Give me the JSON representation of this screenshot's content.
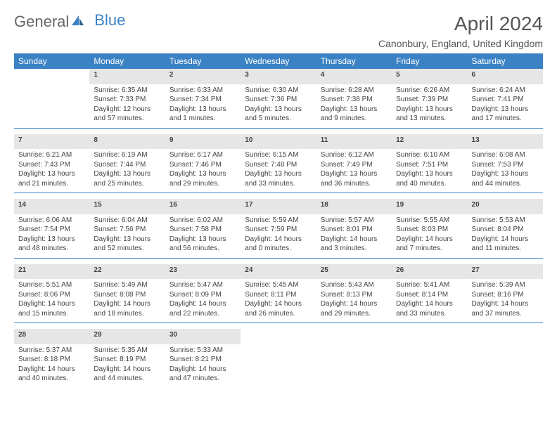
{
  "brand": {
    "general": "General",
    "blue": "Blue"
  },
  "title": "April 2024",
  "location": "Canonbury, England, United Kingdom",
  "colors": {
    "header_bg": "#3b82c4",
    "header_text": "#ffffff",
    "daynum_bg": "#e6e6e6",
    "text": "#444444",
    "rule": "#3b82c4"
  },
  "typography": {
    "title_fontsize": 28,
    "location_fontsize": 14,
    "header_fontsize": 12,
    "daynum_fontsize": 12,
    "cell_fontsize": 10
  },
  "layout": {
    "cols": 7,
    "rows": 5
  },
  "weekdays": [
    "Sunday",
    "Monday",
    "Tuesday",
    "Wednesday",
    "Thursday",
    "Friday",
    "Saturday"
  ],
  "weeks": [
    [
      null,
      {
        "n": "1",
        "sunrise": "Sunrise: 6:35 AM",
        "sunset": "Sunset: 7:33 PM",
        "daylight": "Daylight: 12 hours and 57 minutes."
      },
      {
        "n": "2",
        "sunrise": "Sunrise: 6:33 AM",
        "sunset": "Sunset: 7:34 PM",
        "daylight": "Daylight: 13 hours and 1 minutes."
      },
      {
        "n": "3",
        "sunrise": "Sunrise: 6:30 AM",
        "sunset": "Sunset: 7:36 PM",
        "daylight": "Daylight: 13 hours and 5 minutes."
      },
      {
        "n": "4",
        "sunrise": "Sunrise: 6:28 AM",
        "sunset": "Sunset: 7:38 PM",
        "daylight": "Daylight: 13 hours and 9 minutes."
      },
      {
        "n": "5",
        "sunrise": "Sunrise: 6:26 AM",
        "sunset": "Sunset: 7:39 PM",
        "daylight": "Daylight: 13 hours and 13 minutes."
      },
      {
        "n": "6",
        "sunrise": "Sunrise: 6:24 AM",
        "sunset": "Sunset: 7:41 PM",
        "daylight": "Daylight: 13 hours and 17 minutes."
      }
    ],
    [
      {
        "n": "7",
        "sunrise": "Sunrise: 6:21 AM",
        "sunset": "Sunset: 7:43 PM",
        "daylight": "Daylight: 13 hours and 21 minutes."
      },
      {
        "n": "8",
        "sunrise": "Sunrise: 6:19 AM",
        "sunset": "Sunset: 7:44 PM",
        "daylight": "Daylight: 13 hours and 25 minutes."
      },
      {
        "n": "9",
        "sunrise": "Sunrise: 6:17 AM",
        "sunset": "Sunset: 7:46 PM",
        "daylight": "Daylight: 13 hours and 29 minutes."
      },
      {
        "n": "10",
        "sunrise": "Sunrise: 6:15 AM",
        "sunset": "Sunset: 7:48 PM",
        "daylight": "Daylight: 13 hours and 33 minutes."
      },
      {
        "n": "11",
        "sunrise": "Sunrise: 6:12 AM",
        "sunset": "Sunset: 7:49 PM",
        "daylight": "Daylight: 13 hours and 36 minutes."
      },
      {
        "n": "12",
        "sunrise": "Sunrise: 6:10 AM",
        "sunset": "Sunset: 7:51 PM",
        "daylight": "Daylight: 13 hours and 40 minutes."
      },
      {
        "n": "13",
        "sunrise": "Sunrise: 6:08 AM",
        "sunset": "Sunset: 7:53 PM",
        "daylight": "Daylight: 13 hours and 44 minutes."
      }
    ],
    [
      {
        "n": "14",
        "sunrise": "Sunrise: 6:06 AM",
        "sunset": "Sunset: 7:54 PM",
        "daylight": "Daylight: 13 hours and 48 minutes."
      },
      {
        "n": "15",
        "sunrise": "Sunrise: 6:04 AM",
        "sunset": "Sunset: 7:56 PM",
        "daylight": "Daylight: 13 hours and 52 minutes."
      },
      {
        "n": "16",
        "sunrise": "Sunrise: 6:02 AM",
        "sunset": "Sunset: 7:58 PM",
        "daylight": "Daylight: 13 hours and 56 minutes."
      },
      {
        "n": "17",
        "sunrise": "Sunrise: 5:59 AM",
        "sunset": "Sunset: 7:59 PM",
        "daylight": "Daylight: 14 hours and 0 minutes."
      },
      {
        "n": "18",
        "sunrise": "Sunrise: 5:57 AM",
        "sunset": "Sunset: 8:01 PM",
        "daylight": "Daylight: 14 hours and 3 minutes."
      },
      {
        "n": "19",
        "sunrise": "Sunrise: 5:55 AM",
        "sunset": "Sunset: 8:03 PM",
        "daylight": "Daylight: 14 hours and 7 minutes."
      },
      {
        "n": "20",
        "sunrise": "Sunrise: 5:53 AM",
        "sunset": "Sunset: 8:04 PM",
        "daylight": "Daylight: 14 hours and 11 minutes."
      }
    ],
    [
      {
        "n": "21",
        "sunrise": "Sunrise: 5:51 AM",
        "sunset": "Sunset: 8:06 PM",
        "daylight": "Daylight: 14 hours and 15 minutes."
      },
      {
        "n": "22",
        "sunrise": "Sunrise: 5:49 AM",
        "sunset": "Sunset: 8:08 PM",
        "daylight": "Daylight: 14 hours and 18 minutes."
      },
      {
        "n": "23",
        "sunrise": "Sunrise: 5:47 AM",
        "sunset": "Sunset: 8:09 PM",
        "daylight": "Daylight: 14 hours and 22 minutes."
      },
      {
        "n": "24",
        "sunrise": "Sunrise: 5:45 AM",
        "sunset": "Sunset: 8:11 PM",
        "daylight": "Daylight: 14 hours and 26 minutes."
      },
      {
        "n": "25",
        "sunrise": "Sunrise: 5:43 AM",
        "sunset": "Sunset: 8:13 PM",
        "daylight": "Daylight: 14 hours and 29 minutes."
      },
      {
        "n": "26",
        "sunrise": "Sunrise: 5:41 AM",
        "sunset": "Sunset: 8:14 PM",
        "daylight": "Daylight: 14 hours and 33 minutes."
      },
      {
        "n": "27",
        "sunrise": "Sunrise: 5:39 AM",
        "sunset": "Sunset: 8:16 PM",
        "daylight": "Daylight: 14 hours and 37 minutes."
      }
    ],
    [
      {
        "n": "28",
        "sunrise": "Sunrise: 5:37 AM",
        "sunset": "Sunset: 8:18 PM",
        "daylight": "Daylight: 14 hours and 40 minutes."
      },
      {
        "n": "29",
        "sunrise": "Sunrise: 5:35 AM",
        "sunset": "Sunset: 8:19 PM",
        "daylight": "Daylight: 14 hours and 44 minutes."
      },
      {
        "n": "30",
        "sunrise": "Sunrise: 5:33 AM",
        "sunset": "Sunset: 8:21 PM",
        "daylight": "Daylight: 14 hours and 47 minutes."
      },
      null,
      null,
      null,
      null
    ]
  ]
}
